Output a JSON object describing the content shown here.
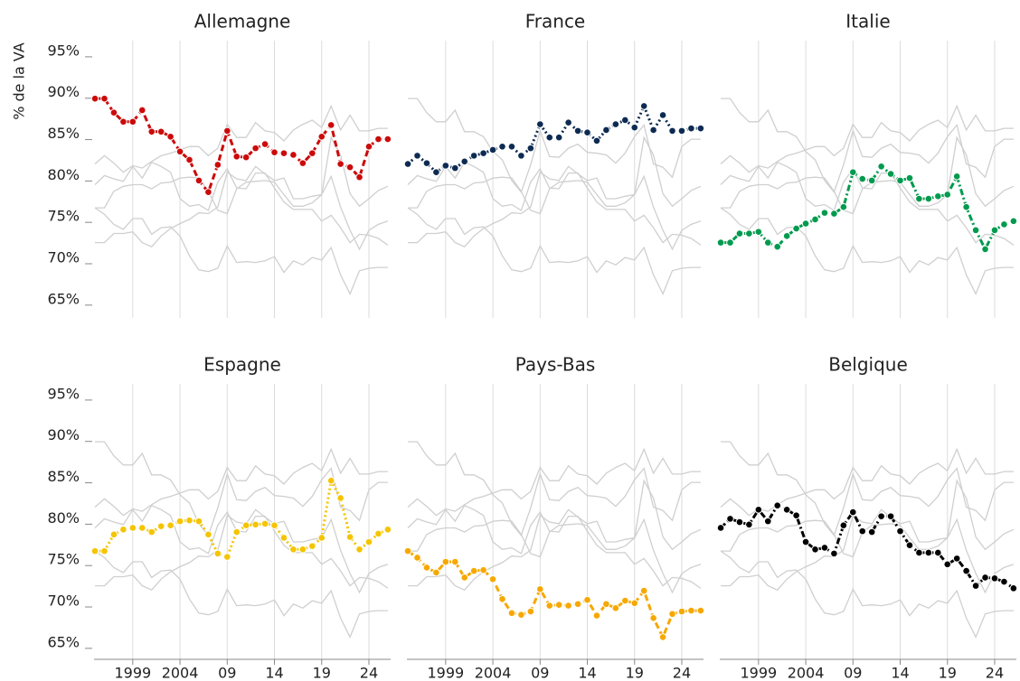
{
  "chart_data": {
    "type": "line",
    "ylabel": "% de la VA",
    "x": [
      1995,
      1996,
      1997,
      1998,
      1999,
      2000,
      2001,
      2002,
      2003,
      2004,
      2005,
      2006,
      2007,
      2008,
      2009,
      2010,
      2011,
      2012,
      2013,
      2014,
      2015,
      2016,
      2017,
      2018,
      2019,
      2020,
      2021,
      2022,
      2023,
      2024,
      2025,
      2026
    ],
    "xlim": [
      1994.9,
      2026.3
    ],
    "xticks": [
      1999,
      2004,
      {
        "value": 2009,
        "label": "09"
      },
      {
        "value": 2014,
        "label": "14"
      },
      {
        "value": 2019,
        "label": "19"
      },
      {
        "value": 2024,
        "label": "24"
      }
    ],
    "ylim": [
      62.8,
      96.3
    ],
    "yticks": [
      {
        "value": 65,
        "label": "65%"
      },
      {
        "value": 70,
        "label": "70%"
      },
      {
        "value": 75,
        "label": "75%"
      },
      {
        "value": 80,
        "label": "80%"
      },
      {
        "value": 85,
        "label": "85%"
      },
      {
        "value": 90,
        "label": "90%"
      },
      {
        "value": 95,
        "label": "95%"
      }
    ],
    "grid": true,
    "series": [
      {
        "name": "Allemagne",
        "color": "#cc0a0a",
        "dash": "dashed",
        "values": [
          89.3,
          89.3,
          87.6,
          86.5,
          86.5,
          87.9,
          85.3,
          85.3,
          84.7,
          82.9,
          81.9,
          79.4,
          78.0,
          81.3,
          85.4,
          82.3,
          82.2,
          83.3,
          83.8,
          82.8,
          82.7,
          82.5,
          81.5,
          82.7,
          84.7,
          86.1,
          81.4,
          81.0,
          79.8,
          83.5,
          84.4,
          84.4
        ]
      },
      {
        "name": "France",
        "color": "#0d2b52",
        "dash": "dotted",
        "values": [
          81.4,
          82.4,
          81.5,
          80.4,
          81.2,
          80.9,
          81.7,
          82.4,
          82.7,
          83.1,
          83.5,
          83.5,
          82.4,
          83.3,
          86.2,
          84.6,
          84.6,
          86.4,
          85.4,
          85.2,
          84.2,
          85.5,
          86.2,
          86.7,
          85.8,
          88.4,
          85.5,
          87.3,
          85.4,
          85.4,
          85.7,
          85.7
        ]
      },
      {
        "name": "Italie",
        "color": "#009a4e",
        "dash": "dashdot",
        "values": [
          71.9,
          71.9,
          73.0,
          73.0,
          73.2,
          71.9,
          71.4,
          72.7,
          73.6,
          74.2,
          74.7,
          75.5,
          75.4,
          76.2,
          80.4,
          79.6,
          79.4,
          81.1,
          80.2,
          79.4,
          79.7,
          77.2,
          77.2,
          77.5,
          77.7,
          79.9,
          76.2,
          73.4,
          71.1,
          73.4,
          74.1,
          74.5
        ]
      },
      {
        "name": "Espagne",
        "color": "#f5c400",
        "dash": "dotted",
        "values": [
          76.1,
          76.1,
          78.1,
          78.7,
          78.9,
          78.9,
          78.4,
          79.1,
          79.2,
          79.7,
          79.8,
          79.7,
          78.1,
          75.8,
          75.4,
          78.4,
          79.2,
          79.3,
          79.4,
          79.2,
          77.7,
          76.3,
          76.3,
          76.7,
          77.7,
          84.6,
          82.5,
          77.8,
          76.3,
          77.2,
          78.2,
          78.7
        ]
      },
      {
        "name": "Pays-Bas",
        "color": "#f7a800",
        "dash": "dashed",
        "values": [
          76.1,
          75.3,
          74.1,
          73.5,
          74.8,
          74.8,
          72.9,
          73.7,
          73.8,
          72.7,
          70.3,
          68.6,
          68.4,
          68.8,
          71.5,
          69.5,
          69.6,
          69.5,
          69.7,
          70.2,
          68.3,
          69.7,
          69.2,
          70.1,
          69.8,
          71.3,
          68.0,
          65.7,
          68.5,
          68.8,
          68.9,
          68.9
        ]
      },
      {
        "name": "Belgique",
        "color": "#000000",
        "dash": "dashdot",
        "values": [
          78.9,
          80.0,
          79.6,
          79.3,
          81.1,
          79.7,
          81.6,
          81.1,
          80.4,
          77.2,
          76.3,
          76.5,
          75.8,
          79.2,
          80.8,
          78.5,
          78.4,
          80.3,
          80.3,
          78.5,
          76.8,
          75.9,
          75.9,
          75.9,
          74.5,
          75.2,
          73.7,
          71.9,
          72.9,
          72.8,
          72.4,
          71.6
        ]
      }
    ]
  }
}
